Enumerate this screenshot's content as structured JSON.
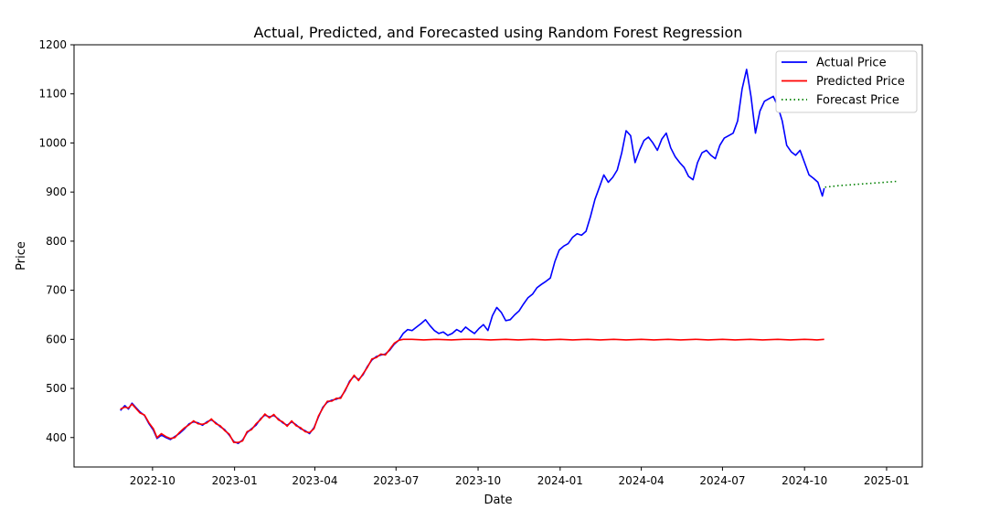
{
  "chart_data": {
    "type": "line",
    "title": "Actual, Predicted, and Forecasted using Random Forest Regression",
    "xlabel": "Date",
    "ylabel": "Price",
    "xlim": [
      "2022-07-05",
      "2025-02-10"
    ],
    "ylim": [
      340,
      1200
    ],
    "x_ticks": [
      "2022-10",
      "2023-01",
      "2023-04",
      "2023-07",
      "2023-10",
      "2024-01",
      "2024-04",
      "2024-07",
      "2024-10",
      "2025-01"
    ],
    "y_ticks": [
      400,
      500,
      600,
      700,
      800,
      900,
      1000,
      1100,
      1200
    ],
    "grid": false,
    "legend_position": "top-right",
    "series": [
      {
        "name": "Actual Price",
        "color": "#0000ff",
        "style": "solid",
        "points": [
          [
            "2022-08-26",
            455
          ],
          [
            "2022-08-31",
            465
          ],
          [
            "2022-09-04",
            458
          ],
          [
            "2022-09-08",
            470
          ],
          [
            "2022-09-12",
            462
          ],
          [
            "2022-09-17",
            452
          ],
          [
            "2022-09-22",
            445
          ],
          [
            "2022-09-27",
            428
          ],
          [
            "2022-10-02",
            415
          ],
          [
            "2022-10-06",
            398
          ],
          [
            "2022-10-11",
            405
          ],
          [
            "2022-10-16",
            400
          ],
          [
            "2022-10-21",
            396
          ],
          [
            "2022-10-26",
            402
          ],
          [
            "2022-10-31",
            408
          ],
          [
            "2022-11-06",
            418
          ],
          [
            "2022-11-11",
            428
          ],
          [
            "2022-11-16",
            432
          ],
          [
            "2022-11-21",
            430
          ],
          [
            "2022-11-26",
            425
          ],
          [
            "2022-12-01",
            432
          ],
          [
            "2022-12-06",
            436
          ],
          [
            "2022-12-11",
            430
          ],
          [
            "2022-12-16",
            422
          ],
          [
            "2022-12-21",
            416
          ],
          [
            "2022-12-26",
            405
          ],
          [
            "2022-12-31",
            392
          ],
          [
            "2023-01-05",
            388
          ],
          [
            "2023-01-10",
            395
          ],
          [
            "2023-01-15",
            410
          ],
          [
            "2023-01-20",
            418
          ],
          [
            "2023-01-25",
            425
          ],
          [
            "2023-01-30",
            438
          ],
          [
            "2023-02-04",
            446
          ],
          [
            "2023-02-09",
            442
          ],
          [
            "2023-02-14",
            445
          ],
          [
            "2023-02-19",
            438
          ],
          [
            "2023-02-24",
            430
          ],
          [
            "2023-03-01",
            425
          ],
          [
            "2023-03-06",
            432
          ],
          [
            "2023-03-11",
            426
          ],
          [
            "2023-03-16",
            418
          ],
          [
            "2023-03-21",
            414
          ],
          [
            "2023-03-26",
            408
          ],
          [
            "2023-03-31",
            420
          ],
          [
            "2023-04-05",
            442
          ],
          [
            "2023-04-10",
            462
          ],
          [
            "2023-04-15",
            472
          ],
          [
            "2023-04-20",
            476
          ],
          [
            "2023-04-25",
            478
          ],
          [
            "2023-04-30",
            482
          ],
          [
            "2023-05-05",
            495
          ],
          [
            "2023-05-10",
            515
          ],
          [
            "2023-05-15",
            525
          ],
          [
            "2023-05-20",
            518
          ],
          [
            "2023-05-25",
            528
          ],
          [
            "2023-05-30",
            545
          ],
          [
            "2023-06-04",
            558
          ],
          [
            "2023-06-09",
            565
          ],
          [
            "2023-06-14",
            568
          ],
          [
            "2023-06-19",
            570
          ],
          [
            "2023-06-24",
            578
          ],
          [
            "2023-06-29",
            590
          ],
          [
            "2023-07-04",
            598
          ],
          [
            "2023-07-09",
            612
          ],
          [
            "2023-07-14",
            620
          ],
          [
            "2023-07-19",
            618
          ],
          [
            "2023-07-24",
            625
          ],
          [
            "2023-07-29",
            632
          ],
          [
            "2023-08-03",
            640
          ],
          [
            "2023-08-08",
            628
          ],
          [
            "2023-08-13",
            618
          ],
          [
            "2023-08-18",
            612
          ],
          [
            "2023-08-23",
            615
          ],
          [
            "2023-08-28",
            608
          ],
          [
            "2023-09-02",
            612
          ],
          [
            "2023-09-07",
            620
          ],
          [
            "2023-09-12",
            615
          ],
          [
            "2023-09-17",
            625
          ],
          [
            "2023-09-22",
            618
          ],
          [
            "2023-09-27",
            612
          ],
          [
            "2023-10-02",
            622
          ],
          [
            "2023-10-07",
            630
          ],
          [
            "2023-10-12",
            618
          ],
          [
            "2023-10-17",
            648
          ],
          [
            "2023-10-22",
            665
          ],
          [
            "2023-10-27",
            655
          ],
          [
            "2023-11-01",
            638
          ],
          [
            "2023-11-06",
            640
          ],
          [
            "2023-11-11",
            650
          ],
          [
            "2023-11-16",
            658
          ],
          [
            "2023-11-21",
            672
          ],
          [
            "2023-11-26",
            685
          ],
          [
            "2023-12-01",
            692
          ],
          [
            "2023-12-06",
            705
          ],
          [
            "2023-12-11",
            712
          ],
          [
            "2023-12-16",
            718
          ],
          [
            "2023-12-21",
            725
          ],
          [
            "2023-12-26",
            758
          ],
          [
            "2023-12-31",
            782
          ],
          [
            "2024-01-05",
            790
          ],
          [
            "2024-01-10",
            795
          ],
          [
            "2024-01-15",
            808
          ],
          [
            "2024-01-20",
            815
          ],
          [
            "2024-01-25",
            812
          ],
          [
            "2024-01-30",
            820
          ],
          [
            "2024-02-04",
            850
          ],
          [
            "2024-02-09",
            885
          ],
          [
            "2024-02-14",
            910
          ],
          [
            "2024-02-19",
            935
          ],
          [
            "2024-02-24",
            920
          ],
          [
            "2024-02-29",
            930
          ],
          [
            "2024-03-05",
            945
          ],
          [
            "2024-03-10",
            980
          ],
          [
            "2024-03-15",
            1025
          ],
          [
            "2024-03-20",
            1015
          ],
          [
            "2024-03-25",
            960
          ],
          [
            "2024-03-30",
            985
          ],
          [
            "2024-04-04",
            1005
          ],
          [
            "2024-04-09",
            1012
          ],
          [
            "2024-04-14",
            1000
          ],
          [
            "2024-04-19",
            985
          ],
          [
            "2024-04-24",
            1008
          ],
          [
            "2024-04-29",
            1020
          ],
          [
            "2024-05-04",
            990
          ],
          [
            "2024-05-09",
            972
          ],
          [
            "2024-05-14",
            960
          ],
          [
            "2024-05-19",
            950
          ],
          [
            "2024-05-24",
            932
          ],
          [
            "2024-05-29",
            925
          ],
          [
            "2024-06-03",
            960
          ],
          [
            "2024-06-08",
            980
          ],
          [
            "2024-06-13",
            985
          ],
          [
            "2024-06-18",
            975
          ],
          [
            "2024-06-23",
            968
          ],
          [
            "2024-06-28",
            995
          ],
          [
            "2024-07-03",
            1010
          ],
          [
            "2024-07-08",
            1015
          ],
          [
            "2024-07-13",
            1020
          ],
          [
            "2024-07-18",
            1045
          ],
          [
            "2024-07-23",
            1110
          ],
          [
            "2024-07-28",
            1150
          ],
          [
            "2024-08-02",
            1095
          ],
          [
            "2024-08-07",
            1020
          ],
          [
            "2024-08-12",
            1065
          ],
          [
            "2024-08-17",
            1085
          ],
          [
            "2024-08-22",
            1090
          ],
          [
            "2024-08-27",
            1095
          ],
          [
            "2024-09-01",
            1075
          ],
          [
            "2024-09-06",
            1045
          ],
          [
            "2024-09-11",
            995
          ],
          [
            "2024-09-16",
            982
          ],
          [
            "2024-09-21",
            975
          ],
          [
            "2024-09-26",
            985
          ],
          [
            "2024-10-01",
            960
          ],
          [
            "2024-10-06",
            935
          ],
          [
            "2024-10-11",
            928
          ],
          [
            "2024-10-16",
            920
          ],
          [
            "2024-10-21",
            892
          ],
          [
            "2024-10-23",
            908
          ]
        ]
      },
      {
        "name": "Predicted Price",
        "color": "#ff0000",
        "style": "solid",
        "points": [
          [
            "2022-08-26",
            458
          ],
          [
            "2022-08-31",
            462
          ],
          [
            "2022-09-04",
            460
          ],
          [
            "2022-09-08",
            468
          ],
          [
            "2022-09-12",
            460
          ],
          [
            "2022-09-17",
            450
          ],
          [
            "2022-09-22",
            446
          ],
          [
            "2022-09-27",
            430
          ],
          [
            "2022-10-02",
            418
          ],
          [
            "2022-10-06",
            400
          ],
          [
            "2022-10-11",
            408
          ],
          [
            "2022-10-16",
            402
          ],
          [
            "2022-10-21",
            398
          ],
          [
            "2022-10-26",
            400
          ],
          [
            "2022-10-31",
            410
          ],
          [
            "2022-11-06",
            420
          ],
          [
            "2022-11-11",
            426
          ],
          [
            "2022-11-16",
            434
          ],
          [
            "2022-11-21",
            428
          ],
          [
            "2022-11-26",
            427
          ],
          [
            "2022-12-01",
            430
          ],
          [
            "2022-12-06",
            438
          ],
          [
            "2022-12-11",
            428
          ],
          [
            "2022-12-16",
            424
          ],
          [
            "2022-12-21",
            414
          ],
          [
            "2022-12-26",
            407
          ],
          [
            "2022-12-31",
            390
          ],
          [
            "2023-01-05",
            390
          ],
          [
            "2023-01-10",
            393
          ],
          [
            "2023-01-15",
            412
          ],
          [
            "2023-01-20",
            416
          ],
          [
            "2023-01-25",
            428
          ],
          [
            "2023-01-30",
            436
          ],
          [
            "2023-02-04",
            448
          ],
          [
            "2023-02-09",
            440
          ],
          [
            "2023-02-14",
            447
          ],
          [
            "2023-02-19",
            436
          ],
          [
            "2023-02-24",
            432
          ],
          [
            "2023-03-01",
            423
          ],
          [
            "2023-03-06",
            434
          ],
          [
            "2023-03-11",
            424
          ],
          [
            "2023-03-16",
            420
          ],
          [
            "2023-03-21",
            412
          ],
          [
            "2023-03-26",
            410
          ],
          [
            "2023-03-31",
            418
          ],
          [
            "2023-04-05",
            444
          ],
          [
            "2023-04-10",
            460
          ],
          [
            "2023-04-15",
            474
          ],
          [
            "2023-04-20",
            474
          ],
          [
            "2023-04-25",
            480
          ],
          [
            "2023-04-30",
            480
          ],
          [
            "2023-05-05",
            497
          ],
          [
            "2023-05-10",
            513
          ],
          [
            "2023-05-15",
            527
          ],
          [
            "2023-05-20",
            516
          ],
          [
            "2023-05-25",
            530
          ],
          [
            "2023-05-30",
            543
          ],
          [
            "2023-06-04",
            560
          ],
          [
            "2023-06-09",
            563
          ],
          [
            "2023-06-14",
            570
          ],
          [
            "2023-06-19",
            568
          ],
          [
            "2023-06-24",
            580
          ],
          [
            "2023-06-29",
            592
          ],
          [
            "2023-07-04",
            598
          ],
          [
            "2023-07-09",
            600
          ],
          [
            "2023-07-19",
            600
          ],
          [
            "2023-08-01",
            599
          ],
          [
            "2023-08-15",
            600
          ],
          [
            "2023-09-01",
            599
          ],
          [
            "2023-09-15",
            600
          ],
          [
            "2023-10-01",
            600
          ],
          [
            "2023-10-15",
            599
          ],
          [
            "2023-11-01",
            600
          ],
          [
            "2023-11-15",
            599
          ],
          [
            "2023-12-01",
            600
          ],
          [
            "2023-12-15",
            599
          ],
          [
            "2024-01-01",
            600
          ],
          [
            "2024-01-15",
            599
          ],
          [
            "2024-02-01",
            600
          ],
          [
            "2024-02-15",
            599
          ],
          [
            "2024-03-01",
            600
          ],
          [
            "2024-03-15",
            599
          ],
          [
            "2024-04-01",
            600
          ],
          [
            "2024-04-15",
            599
          ],
          [
            "2024-05-01",
            600
          ],
          [
            "2024-05-15",
            599
          ],
          [
            "2024-06-01",
            600
          ],
          [
            "2024-06-15",
            599
          ],
          [
            "2024-07-01",
            600
          ],
          [
            "2024-07-15",
            599
          ],
          [
            "2024-08-01",
            600
          ],
          [
            "2024-08-15",
            599
          ],
          [
            "2024-09-01",
            600
          ],
          [
            "2024-09-15",
            599
          ],
          [
            "2024-10-01",
            600
          ],
          [
            "2024-10-15",
            599
          ],
          [
            "2024-10-23",
            600
          ]
        ]
      },
      {
        "name": "Forecast Price",
        "color": "#008000",
        "style": "dotted",
        "points": [
          [
            "2024-10-24",
            910
          ],
          [
            "2024-11-08",
            913
          ],
          [
            "2024-11-23",
            915
          ],
          [
            "2024-12-08",
            917
          ],
          [
            "2024-12-23",
            919
          ],
          [
            "2025-01-07",
            921
          ],
          [
            "2025-01-14",
            922
          ]
        ]
      }
    ]
  }
}
